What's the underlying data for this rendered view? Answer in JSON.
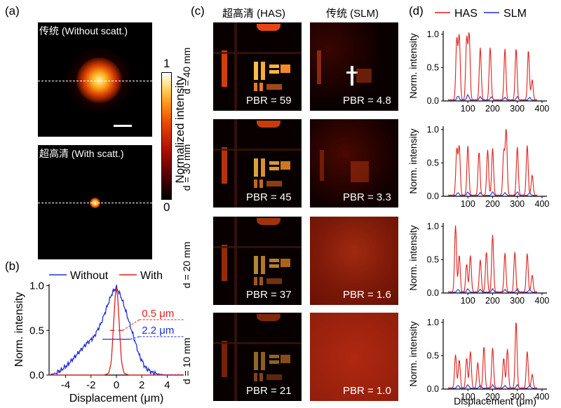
{
  "panels": {
    "a": {
      "letter": "(a)",
      "top_label": "传统 (Without scatt.)",
      "bottom_label": "超高清 (With scatt.)",
      "colorbar": {
        "max": "1",
        "min": "0",
        "title": "Normalized intensity"
      }
    },
    "b": {
      "letter": "(b)"
    },
    "c": {
      "letter": "(c)",
      "col_has": "超高清 (HAS)",
      "col_slm": "传统 (SLM)",
      "rows": [
        {
          "d": "d = 40 mm",
          "pbr_has": "PBR = 59",
          "pbr_slm": "PBR = 4.8"
        },
        {
          "d": "d = 30 mm",
          "pbr_has": "PBR = 45",
          "pbr_slm": "PBR = 3.3"
        },
        {
          "d": "d = 20 mm",
          "pbr_has": "PBR = 37",
          "pbr_slm": "PBR = 1.6"
        },
        {
          "d": "d = 10 mm",
          "pbr_has": "PBR = 21",
          "pbr_slm": "PBR = 1.0"
        }
      ]
    },
    "d": {
      "letter": "(d)"
    }
  },
  "chart_data": [
    {
      "type": "line",
      "panel": "b",
      "xlabel": "Displacement (μm)",
      "ylabel": "Norm. intensity",
      "xlim": [
        -5.3,
        5.3
      ],
      "ylim": [
        0,
        1.02
      ],
      "xticks": [
        -4,
        -2,
        0,
        2,
        4
      ],
      "yticks": [
        0.0,
        0.5,
        1.0
      ],
      "ytick_labels": [
        "0.0",
        "0.5",
        "1.0"
      ],
      "legend": [
        "Without",
        "With"
      ],
      "legend_position": "top",
      "series": [
        {
          "name": "Without",
          "color": "#1f2fd6",
          "x": [
            -5.3,
            -4.8,
            -4.3,
            -3.8,
            -3.3,
            -2.8,
            -2.3,
            -1.8,
            -1.5,
            -1.2,
            -0.9,
            -0.6,
            -0.3,
            0.0,
            0.3,
            0.6,
            0.9,
            1.2,
            1.5,
            1.8,
            2.3,
            2.8,
            3.3,
            3.8,
            4.3,
            4.8,
            5.3
          ],
          "y": [
            0.0,
            0.02,
            0.06,
            0.12,
            0.2,
            0.28,
            0.36,
            0.42,
            0.5,
            0.58,
            0.7,
            0.82,
            0.93,
            0.98,
            0.9,
            0.78,
            0.64,
            0.5,
            0.36,
            0.22,
            0.08,
            0.03,
            0.01,
            0.0,
            0.0,
            0.0,
            0.0
          ]
        },
        {
          "name": "With",
          "color": "#e0201c",
          "x": [
            -5.3,
            -1.0,
            -0.6,
            -0.4,
            -0.25,
            -0.1,
            0.0,
            0.1,
            0.25,
            0.4,
            0.6,
            1.0,
            5.3
          ],
          "y": [
            0.0,
            0.0,
            0.02,
            0.15,
            0.5,
            0.88,
            0.97,
            0.88,
            0.5,
            0.15,
            0.02,
            0.0,
            0.0
          ]
        }
      ],
      "annotations": [
        {
          "text": "0.5 μm",
          "color": "#e0201c"
        },
        {
          "text": "2.2 μm",
          "color": "#1f2fd6"
        }
      ]
    },
    {
      "type": "line",
      "panel": "d",
      "xlabel": "Displacement (μm)",
      "ylabel": "Norm. intensity",
      "xlim": [
        0,
        420
      ],
      "ylim": [
        0,
        1.05
      ],
      "xticks": [
        100,
        200,
        300,
        400
      ],
      "yticks": [
        0.0,
        0.5,
        1.0
      ],
      "ytick_labels": [
        "0.0",
        "0.5",
        "1.0"
      ],
      "legend": [
        "HAS",
        "SLM"
      ],
      "legend_position": "top",
      "colors": {
        "HAS": "#e0201c",
        "SLM": "#1f2fd6"
      },
      "subplots": [
        {
          "has_peaks": [
            [
              55,
              0.9
            ],
            [
              65,
              0.95
            ],
            [
              95,
              0.92
            ],
            [
              105,
              0.98
            ],
            [
              150,
              0.78
            ],
            [
              190,
              0.78
            ],
            [
              250,
              0.76
            ],
            [
              295,
              0.77
            ],
            [
              345,
              0.74
            ],
            [
              360,
              0.3
            ]
          ],
          "slm_peaks": [
            [
              60,
              0.06
            ],
            [
              100,
              0.08
            ],
            [
              150,
              0.05
            ],
            [
              195,
              0.05
            ],
            [
              250,
              0.04
            ],
            [
              300,
              0.05
            ],
            [
              350,
              0.04
            ]
          ]
        },
        {
          "has_peaks": [
            [
              55,
              0.68
            ],
            [
              65,
              0.72
            ],
            [
              100,
              0.74
            ],
            [
              145,
              0.65
            ],
            [
              180,
              0.68
            ],
            [
              200,
              0.7
            ],
            [
              245,
              0.65
            ],
            [
              255,
              0.98
            ],
            [
              300,
              0.72
            ],
            [
              340,
              0.75
            ],
            [
              360,
              0.3
            ]
          ],
          "slm_peaks": [
            [
              60,
              0.04
            ],
            [
              100,
              0.05
            ],
            [
              150,
              0.04
            ],
            [
              200,
              0.05
            ],
            [
              250,
              0.04
            ],
            [
              300,
              0.05
            ],
            [
              350,
              0.04
            ]
          ]
        },
        {
          "has_peaks": [
            [
              50,
              1.0
            ],
            [
              65,
              0.55
            ],
            [
              95,
              0.42
            ],
            [
              110,
              0.55
            ],
            [
              150,
              0.48
            ],
            [
              175,
              0.6
            ],
            [
              200,
              0.85
            ],
            [
              250,
              0.58
            ],
            [
              290,
              0.6
            ],
            [
              340,
              0.58
            ],
            [
              360,
              0.25
            ]
          ],
          "slm_peaks": [
            [
              60,
              0.04
            ],
            [
              100,
              0.05
            ],
            [
              150,
              0.04
            ],
            [
              200,
              0.05
            ],
            [
              250,
              0.04
            ],
            [
              300,
              0.05
            ],
            [
              350,
              0.04
            ]
          ]
        },
        {
          "has_peaks": [
            [
              50,
              0.5
            ],
            [
              65,
              0.42
            ],
            [
              95,
              0.45
            ],
            [
              110,
              0.55
            ],
            [
              140,
              0.38
            ],
            [
              165,
              0.62
            ],
            [
              200,
              0.6
            ],
            [
              245,
              0.45
            ],
            [
              260,
              0.58
            ],
            [
              295,
              1.0
            ],
            [
              340,
              0.55
            ],
            [
              360,
              0.2
            ]
          ],
          "slm_peaks": [
            [
              60,
              0.04
            ],
            [
              100,
              0.05
            ],
            [
              150,
              0.04
            ],
            [
              200,
              0.05
            ],
            [
              250,
              0.04
            ],
            [
              300,
              0.05
            ],
            [
              350,
              0.04
            ]
          ]
        }
      ]
    }
  ]
}
